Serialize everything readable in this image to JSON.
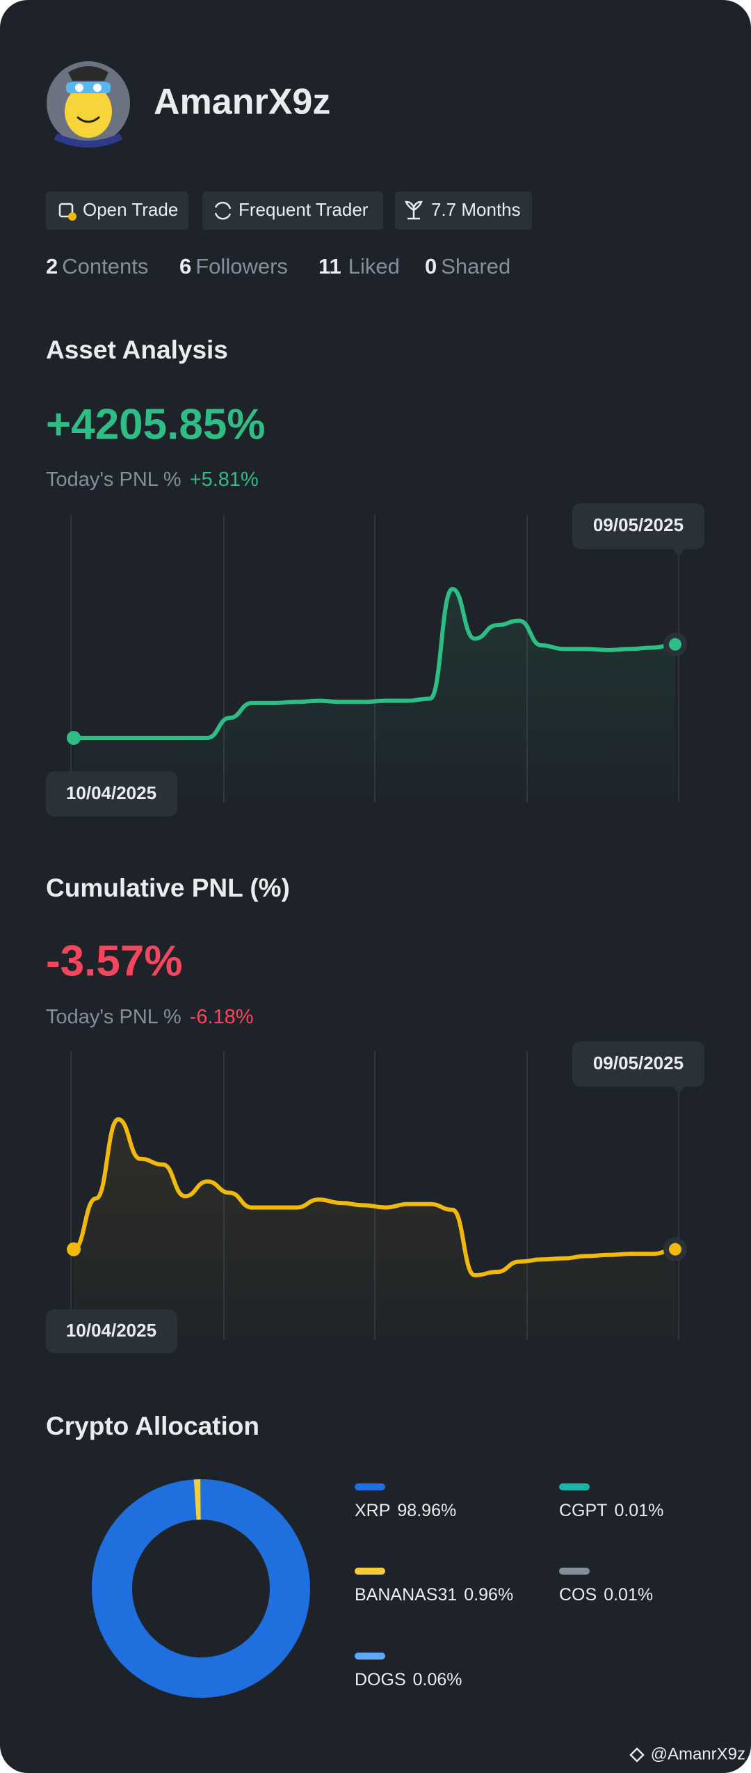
{
  "profile": {
    "name": "AmanrX9z",
    "tags": [
      "Open Trade",
      "Frequent Trader",
      "7.7 Months"
    ],
    "stats": [
      {
        "count": 2,
        "label": "Contents"
      },
      {
        "count": 6,
        "label": "Followers"
      },
      {
        "count": 11,
        "label": "Liked"
      },
      {
        "count": 0,
        "label": "Shared"
      }
    ]
  },
  "asset_analysis": {
    "title": "Asset Analysis",
    "pnl": "+4205.85%",
    "today_label": "Today's PNL %",
    "today_value": "+5.81%",
    "chart": {
      "type": "line",
      "start_date": "10/04/2025",
      "end_date": "09/05/2025",
      "color": "#2ebd85",
      "values": [
        0,
        0,
        0,
        0,
        0,
        0,
        0,
        900,
        1570,
        1570,
        1620,
        1670,
        1620,
        1620,
        1670,
        1670,
        1770,
        6700,
        4460,
        5070,
        5270,
        4160,
        4000,
        4000,
        3950,
        4000,
        4060,
        4205.85
      ]
    }
  },
  "cumulative_pnl": {
    "title": "Cumulative PNL (%)",
    "pnl": "-3.57%",
    "today_label": "Today's PNL %",
    "today_value": "-6.18%",
    "chart": {
      "type": "line",
      "start_date": "10/04/2025",
      "end_date": "09/05/2025",
      "color": "#f0b90b",
      "values": [
        -3.57,
        9.93,
        30.93,
        20.43,
        18.93,
        10.53,
        14.43,
        11.43,
        7.53,
        7.53,
        7.53,
        9.63,
        8.73,
        8.13,
        7.53,
        8.43,
        8.43,
        6.93,
        -10.47,
        -9.57,
        -6.87,
        -6.27,
        -5.97,
        -5.37,
        -5.07,
        -4.77,
        -4.77,
        -3.57
      ]
    }
  },
  "crypto_allocation": {
    "title": "Crypto Allocation",
    "chart": {
      "type": "donut",
      "categories": [
        "XRP",
        "BANANAS31",
        "DOGS",
        "CGPT",
        "COS"
      ],
      "values": [
        98.96,
        0.96,
        0.06,
        0.01,
        0.01
      ],
      "value_labels": [
        "98.96%",
        "0.96%",
        "0.06%",
        "0.01%",
        "0.01%"
      ],
      "colors": [
        "#1f6fde",
        "#f5cd3a",
        "#5ea9f7",
        "#19b5a8",
        "#848e9c"
      ]
    }
  },
  "watermark": "@AmanrX9z"
}
